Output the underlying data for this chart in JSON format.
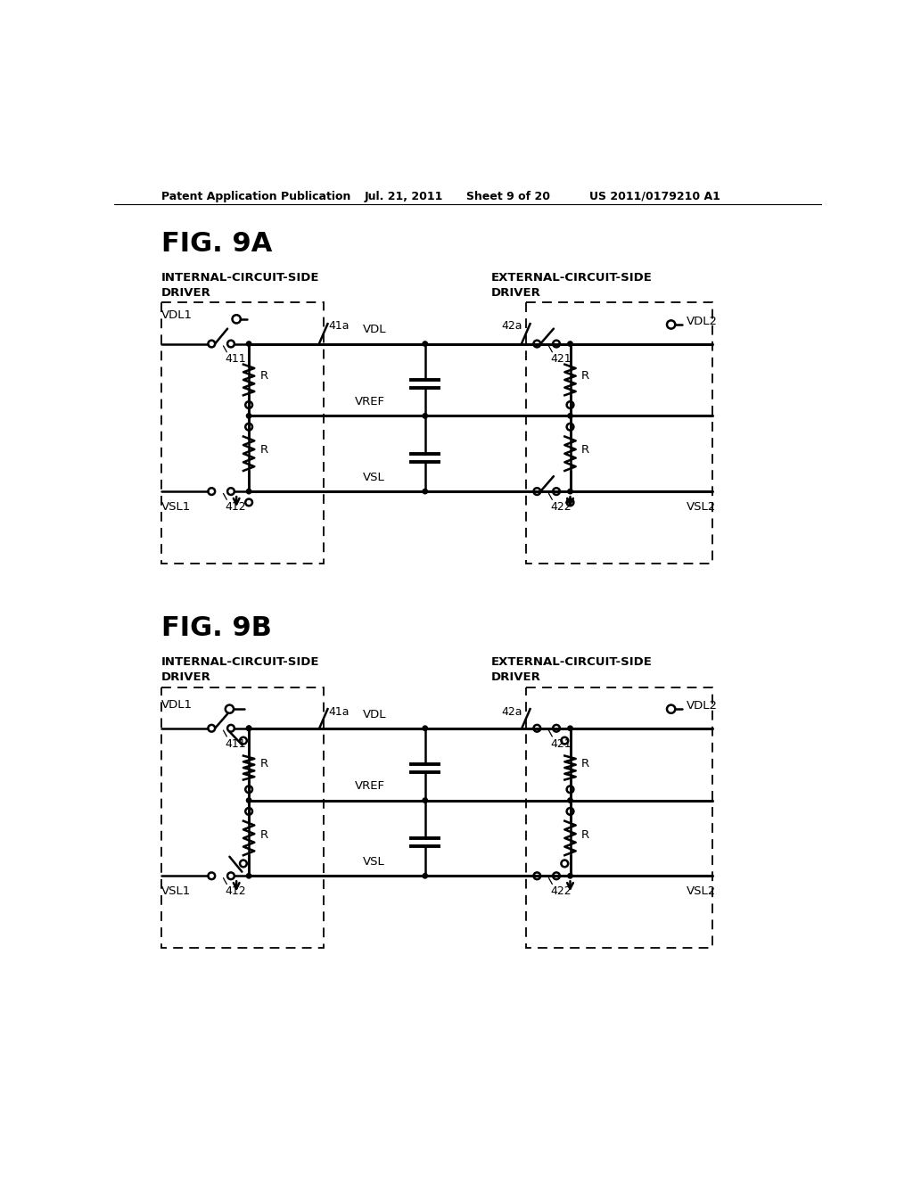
{
  "background_color": "#ffffff",
  "header_text": "Patent Application Publication",
  "header_date": "Jul. 21, 2011",
  "header_sheet": "Sheet 9 of 20",
  "header_patent": "US 2011/0179210 A1",
  "fig9a_title": "FIG. 9A",
  "fig9b_title": "FIG. 9B",
  "label_internal": "INTERNAL-CIRCUIT-SIDE\nDRIVER",
  "label_external": "EXTERNAL-CIRCUIT-SIDE\nDRIVER",
  "label_41a": "41a",
  "label_42a": "42a",
  "label_411": "411",
  "label_412": "412",
  "label_421": "421",
  "label_422": "422",
  "label_VDL1": "VDL1",
  "label_VDL2": "VDL2",
  "label_VSL1": "VSL1",
  "label_VSL2": "VSL2",
  "label_VDL": "VDL",
  "label_VREF": "VREF",
  "label_VSL": "VSL",
  "label_R": "R"
}
